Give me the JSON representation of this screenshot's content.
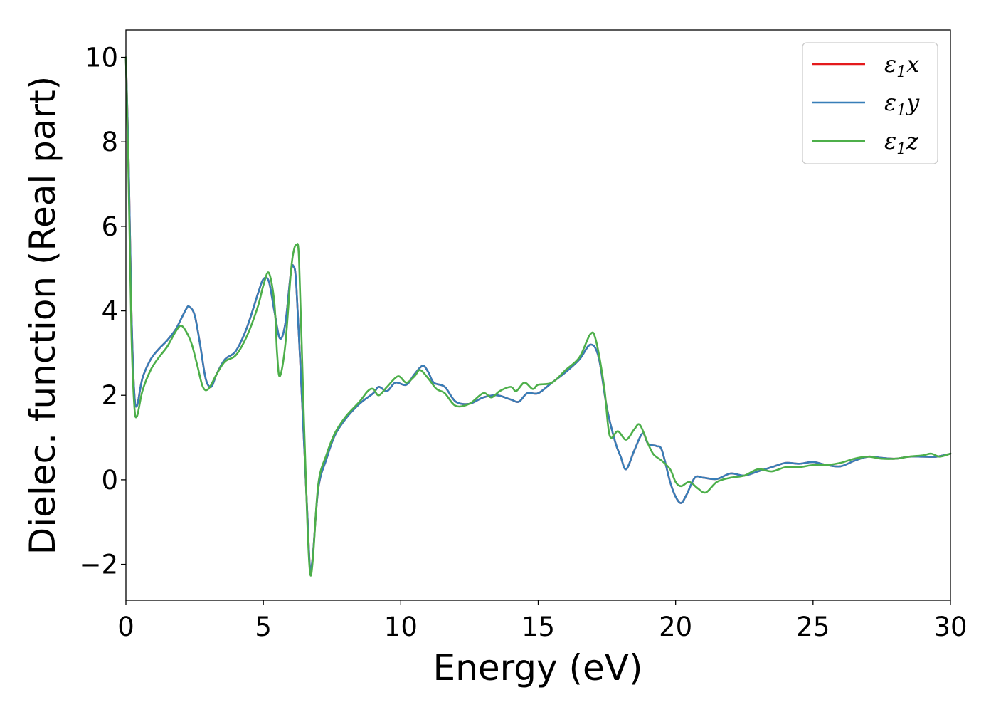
{
  "chart_data": {
    "type": "line",
    "xlabel": "Energy (eV)",
    "ylabel": "Dielec. function (Real part)",
    "xlim": [
      0,
      30
    ],
    "ylim": [
      -2.85,
      10.65
    ],
    "xticks": [
      0,
      5,
      10,
      15,
      20,
      25,
      30
    ],
    "xtick_labels": [
      "0",
      "5",
      "10",
      "15",
      "20",
      "25",
      "30"
    ],
    "yticks": [
      -2,
      0,
      2,
      4,
      6,
      8,
      10
    ],
    "ytick_labels": [
      "−2",
      "0",
      "2",
      "4",
      "6",
      "8",
      "10"
    ],
    "grid": false,
    "legend_position": "top-right",
    "series": [
      {
        "name": "ε1x",
        "symbol": "ε",
        "sub": "1",
        "suffix": "x",
        "color": "#e41a1c",
        "points": [
          [
            0,
            10
          ],
          [
            0.1,
            7.5
          ],
          [
            0.2,
            4
          ],
          [
            0.3,
            2.1
          ],
          [
            0.4,
            1.75
          ],
          [
            0.6,
            2.4
          ],
          [
            0.9,
            2.85
          ],
          [
            1.2,
            3.1
          ],
          [
            1.5,
            3.3
          ],
          [
            1.8,
            3.55
          ],
          [
            2.0,
            3.8
          ],
          [
            2.2,
            4.05
          ],
          [
            2.3,
            4.1
          ],
          [
            2.5,
            3.9
          ],
          [
            2.7,
            3.2
          ],
          [
            2.9,
            2.4
          ],
          [
            3.1,
            2.2
          ],
          [
            3.3,
            2.5
          ],
          [
            3.6,
            2.85
          ],
          [
            4.0,
            3.05
          ],
          [
            4.4,
            3.6
          ],
          [
            4.8,
            4.4
          ],
          [
            5.0,
            4.75
          ],
          [
            5.2,
            4.7
          ],
          [
            5.4,
            4.0
          ],
          [
            5.6,
            3.35
          ],
          [
            5.8,
            3.7
          ],
          [
            6.0,
            4.9
          ],
          [
            6.1,
            5.05
          ],
          [
            6.2,
            4.6
          ],
          [
            6.4,
            2.0
          ],
          [
            6.6,
            -0.8
          ],
          [
            6.7,
            -2.1
          ],
          [
            6.8,
            -1.8
          ],
          [
            7.0,
            -0.2
          ],
          [
            7.3,
            0.5
          ],
          [
            7.6,
            1.05
          ],
          [
            8.0,
            1.45
          ],
          [
            8.5,
            1.8
          ],
          [
            9.0,
            2.05
          ],
          [
            9.2,
            2.2
          ],
          [
            9.5,
            2.1
          ],
          [
            9.8,
            2.3
          ],
          [
            10.2,
            2.25
          ],
          [
            10.5,
            2.5
          ],
          [
            10.8,
            2.7
          ],
          [
            11.0,
            2.55
          ],
          [
            11.2,
            2.3
          ],
          [
            11.6,
            2.2
          ],
          [
            12.0,
            1.85
          ],
          [
            12.5,
            1.8
          ],
          [
            13.0,
            1.95
          ],
          [
            13.5,
            2.0
          ],
          [
            14.0,
            1.9
          ],
          [
            14.3,
            1.85
          ],
          [
            14.6,
            2.05
          ],
          [
            15.0,
            2.05
          ],
          [
            15.5,
            2.3
          ],
          [
            16.0,
            2.55
          ],
          [
            16.5,
            2.85
          ],
          [
            16.9,
            3.2
          ],
          [
            17.2,
            2.9
          ],
          [
            17.5,
            1.7
          ],
          [
            17.8,
            0.9
          ],
          [
            18.0,
            0.55
          ],
          [
            18.2,
            0.25
          ],
          [
            18.5,
            0.7
          ],
          [
            18.8,
            1.1
          ],
          [
            19.0,
            0.85
          ],
          [
            19.3,
            0.8
          ],
          [
            19.5,
            0.7
          ],
          [
            19.8,
            -0.05
          ],
          [
            20.0,
            -0.4
          ],
          [
            20.2,
            -0.55
          ],
          [
            20.4,
            -0.35
          ],
          [
            20.7,
            0.05
          ],
          [
            21.0,
            0.05
          ],
          [
            21.5,
            0.02
          ],
          [
            22.0,
            0.15
          ],
          [
            22.5,
            0.1
          ],
          [
            23.0,
            0.2
          ],
          [
            23.5,
            0.3
          ],
          [
            24.0,
            0.4
          ],
          [
            24.5,
            0.38
          ],
          [
            25.0,
            0.42
          ],
          [
            25.5,
            0.35
          ],
          [
            26.0,
            0.32
          ],
          [
            26.5,
            0.45
          ],
          [
            27.0,
            0.55
          ],
          [
            27.5,
            0.52
          ],
          [
            28.0,
            0.5
          ],
          [
            28.5,
            0.55
          ],
          [
            29.0,
            0.55
          ],
          [
            29.5,
            0.55
          ],
          [
            30.0,
            0.62
          ]
        ]
      },
      {
        "name": "ε1y",
        "symbol": "ε",
        "sub": "1",
        "suffix": "y",
        "color": "#377eb8",
        "points": [
          [
            0,
            10
          ],
          [
            0.1,
            7.5
          ],
          [
            0.2,
            4
          ],
          [
            0.3,
            2.1
          ],
          [
            0.4,
            1.75
          ],
          [
            0.6,
            2.4
          ],
          [
            0.9,
            2.85
          ],
          [
            1.2,
            3.1
          ],
          [
            1.5,
            3.3
          ],
          [
            1.8,
            3.55
          ],
          [
            2.0,
            3.8
          ],
          [
            2.2,
            4.05
          ],
          [
            2.3,
            4.1
          ],
          [
            2.5,
            3.9
          ],
          [
            2.7,
            3.2
          ],
          [
            2.9,
            2.4
          ],
          [
            3.1,
            2.2
          ],
          [
            3.3,
            2.5
          ],
          [
            3.6,
            2.85
          ],
          [
            4.0,
            3.05
          ],
          [
            4.4,
            3.6
          ],
          [
            4.8,
            4.4
          ],
          [
            5.0,
            4.75
          ],
          [
            5.2,
            4.7
          ],
          [
            5.4,
            4.0
          ],
          [
            5.6,
            3.35
          ],
          [
            5.8,
            3.7
          ],
          [
            6.0,
            4.9
          ],
          [
            6.1,
            5.05
          ],
          [
            6.2,
            4.6
          ],
          [
            6.4,
            2.0
          ],
          [
            6.6,
            -0.8
          ],
          [
            6.7,
            -2.1
          ],
          [
            6.8,
            -1.8
          ],
          [
            7.0,
            -0.2
          ],
          [
            7.3,
            0.5
          ],
          [
            7.6,
            1.05
          ],
          [
            8.0,
            1.45
          ],
          [
            8.5,
            1.8
          ],
          [
            9.0,
            2.05
          ],
          [
            9.2,
            2.2
          ],
          [
            9.5,
            2.1
          ],
          [
            9.8,
            2.3
          ],
          [
            10.2,
            2.25
          ],
          [
            10.5,
            2.5
          ],
          [
            10.8,
            2.7
          ],
          [
            11.0,
            2.55
          ],
          [
            11.2,
            2.3
          ],
          [
            11.6,
            2.2
          ],
          [
            12.0,
            1.85
          ],
          [
            12.5,
            1.8
          ],
          [
            13.0,
            1.95
          ],
          [
            13.5,
            2.0
          ],
          [
            14.0,
            1.9
          ],
          [
            14.3,
            1.85
          ],
          [
            14.6,
            2.05
          ],
          [
            15.0,
            2.05
          ],
          [
            15.5,
            2.3
          ],
          [
            16.0,
            2.55
          ],
          [
            16.5,
            2.85
          ],
          [
            16.9,
            3.2
          ],
          [
            17.2,
            2.9
          ],
          [
            17.5,
            1.7
          ],
          [
            17.8,
            0.9
          ],
          [
            18.0,
            0.55
          ],
          [
            18.2,
            0.25
          ],
          [
            18.5,
            0.7
          ],
          [
            18.8,
            1.1
          ],
          [
            19.0,
            0.85
          ],
          [
            19.3,
            0.8
          ],
          [
            19.5,
            0.7
          ],
          [
            19.8,
            -0.05
          ],
          [
            20.0,
            -0.4
          ],
          [
            20.2,
            -0.55
          ],
          [
            20.4,
            -0.35
          ],
          [
            20.7,
            0.05
          ],
          [
            21.0,
            0.05
          ],
          [
            21.5,
            0.02
          ],
          [
            22.0,
            0.15
          ],
          [
            22.5,
            0.1
          ],
          [
            23.0,
            0.2
          ],
          [
            23.5,
            0.3
          ],
          [
            24.0,
            0.4
          ],
          [
            24.5,
            0.38
          ],
          [
            25.0,
            0.42
          ],
          [
            25.5,
            0.35
          ],
          [
            26.0,
            0.32
          ],
          [
            26.5,
            0.45
          ],
          [
            27.0,
            0.55
          ],
          [
            27.5,
            0.52
          ],
          [
            28.0,
            0.5
          ],
          [
            28.5,
            0.55
          ],
          [
            29.0,
            0.55
          ],
          [
            29.5,
            0.55
          ],
          [
            30.0,
            0.62
          ]
        ]
      },
      {
        "name": "ε1z",
        "symbol": "ε",
        "sub": "1",
        "suffix": "z",
        "color": "#4daf4a",
        "points": [
          [
            0,
            10
          ],
          [
            0.1,
            7.0
          ],
          [
            0.2,
            3.5
          ],
          [
            0.3,
            1.8
          ],
          [
            0.4,
            1.5
          ],
          [
            0.6,
            2.1
          ],
          [
            0.9,
            2.6
          ],
          [
            1.2,
            2.9
          ],
          [
            1.5,
            3.15
          ],
          [
            1.8,
            3.5
          ],
          [
            2.0,
            3.65
          ],
          [
            2.2,
            3.5
          ],
          [
            2.4,
            3.2
          ],
          [
            2.6,
            2.7
          ],
          [
            2.8,
            2.2
          ],
          [
            3.0,
            2.15
          ],
          [
            3.3,
            2.5
          ],
          [
            3.6,
            2.8
          ],
          [
            4.0,
            2.95
          ],
          [
            4.4,
            3.4
          ],
          [
            4.8,
            4.1
          ],
          [
            5.0,
            4.6
          ],
          [
            5.2,
            4.9
          ],
          [
            5.4,
            4.2
          ],
          [
            5.5,
            3.0
          ],
          [
            5.6,
            2.45
          ],
          [
            5.8,
            3.2
          ],
          [
            6.0,
            4.9
          ],
          [
            6.1,
            5.4
          ],
          [
            6.2,
            5.55
          ],
          [
            6.3,
            5.2
          ],
          [
            6.45,
            2.0
          ],
          [
            6.6,
            -1.0
          ],
          [
            6.7,
            -2.2
          ],
          [
            6.8,
            -1.9
          ],
          [
            7.0,
            -0.1
          ],
          [
            7.3,
            0.6
          ],
          [
            7.6,
            1.1
          ],
          [
            8.0,
            1.5
          ],
          [
            8.5,
            1.85
          ],
          [
            8.8,
            2.1
          ],
          [
            9.0,
            2.15
          ],
          [
            9.2,
            2.0
          ],
          [
            9.5,
            2.2
          ],
          [
            9.9,
            2.45
          ],
          [
            10.2,
            2.3
          ],
          [
            10.5,
            2.45
          ],
          [
            10.7,
            2.6
          ],
          [
            11.0,
            2.4
          ],
          [
            11.3,
            2.15
          ],
          [
            11.6,
            2.05
          ],
          [
            12.0,
            1.75
          ],
          [
            12.5,
            1.8
          ],
          [
            13.0,
            2.05
          ],
          [
            13.3,
            1.95
          ],
          [
            13.6,
            2.1
          ],
          [
            14.0,
            2.2
          ],
          [
            14.2,
            2.1
          ],
          [
            14.5,
            2.3
          ],
          [
            14.8,
            2.15
          ],
          [
            15.0,
            2.25
          ],
          [
            15.5,
            2.3
          ],
          [
            16.0,
            2.6
          ],
          [
            16.5,
            2.9
          ],
          [
            16.9,
            3.45
          ],
          [
            17.1,
            3.3
          ],
          [
            17.4,
            2.2
          ],
          [
            17.6,
            1.05
          ],
          [
            17.9,
            1.15
          ],
          [
            18.2,
            0.95
          ],
          [
            18.5,
            1.2
          ],
          [
            18.7,
            1.3
          ],
          [
            19.0,
            0.85
          ],
          [
            19.2,
            0.6
          ],
          [
            19.5,
            0.45
          ],
          [
            19.8,
            0.25
          ],
          [
            20.0,
            -0.05
          ],
          [
            20.2,
            -0.15
          ],
          [
            20.5,
            -0.05
          ],
          [
            20.8,
            -0.2
          ],
          [
            21.1,
            -0.3
          ],
          [
            21.5,
            -0.05
          ],
          [
            22.0,
            0.05
          ],
          [
            22.5,
            0.1
          ],
          [
            23.0,
            0.25
          ],
          [
            23.5,
            0.2
          ],
          [
            24.0,
            0.3
          ],
          [
            24.5,
            0.3
          ],
          [
            25.0,
            0.35
          ],
          [
            25.5,
            0.35
          ],
          [
            26.0,
            0.4
          ],
          [
            26.5,
            0.5
          ],
          [
            27.0,
            0.55
          ],
          [
            27.5,
            0.5
          ],
          [
            28.0,
            0.5
          ],
          [
            28.5,
            0.55
          ],
          [
            29.0,
            0.58
          ],
          [
            29.3,
            0.62
          ],
          [
            29.6,
            0.55
          ],
          [
            30.0,
            0.62
          ]
        ]
      }
    ]
  }
}
